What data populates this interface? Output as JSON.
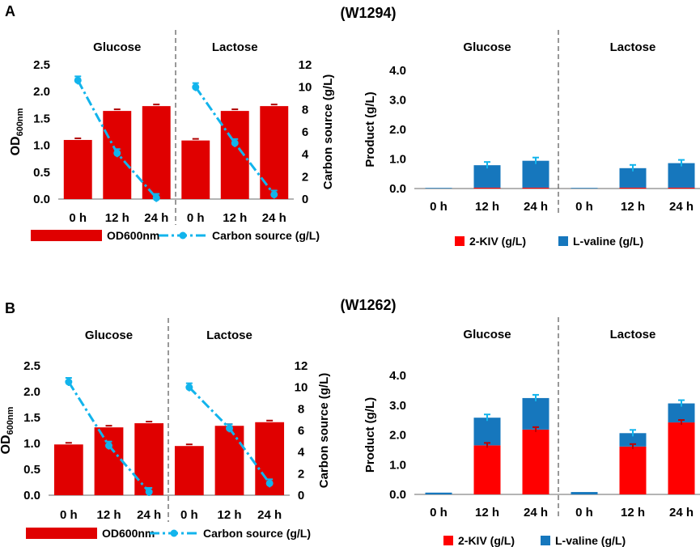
{
  "figure": {
    "panels": [
      {
        "label": "A",
        "title": "(W1294)"
      },
      {
        "label": "B",
        "title": "(W1262)"
      }
    ]
  },
  "colors": {
    "bar": "#e00000",
    "line": "#12b4ec",
    "valine": "#1677bd",
    "kiv": "#ff0000",
    "errbar": "#12b4ec",
    "axis": "#888888",
    "divider": "#333333"
  },
  "chart_data": [
    {
      "id": "A-left",
      "type": "bar+line",
      "groups": [
        "Glucose",
        "Lactose"
      ],
      "categories": [
        "0 h",
        "12 h",
        "24 h"
      ],
      "ylabel_left_main": "OD",
      "ylabel_left_sub": "600nm",
      "ylabel_right": "Carbon source (g/L)",
      "ylim_left": [
        0,
        2.5
      ],
      "yticks_left": [
        "0.0",
        "0.5",
        "1.0",
        "1.5",
        "2.0",
        "2.5"
      ],
      "ylim_right": [
        0,
        12
      ],
      "yticks_right": [
        "0",
        "2",
        "4",
        "6",
        "8",
        "10",
        "12"
      ],
      "series": [
        {
          "name": "OD600nm",
          "type": "bar",
          "axis": "left",
          "values": [
            [
              1.1,
              1.64,
              1.73
            ],
            [
              1.09,
              1.64,
              1.73
            ]
          ]
        },
        {
          "name": "Carbon source (g/L)",
          "type": "line",
          "axis": "right",
          "values": [
            [
              10.6,
              4.1,
              0.1
            ],
            [
              10.0,
              5.0,
              0.4
            ]
          ]
        }
      ],
      "legend": [
        "OD600nm",
        "Carbon source (g/L)"
      ]
    },
    {
      "id": "A-right",
      "type": "stacked-bar",
      "groups": [
        "Glucose",
        "Lactose"
      ],
      "categories": [
        "0 h",
        "12 h",
        "24 h"
      ],
      "ylabel": "Product (g/L)",
      "ylim": [
        0,
        4.0
      ],
      "yticks": [
        "0.0",
        "1.0",
        "2.0",
        "3.0",
        "4.0"
      ],
      "series": [
        {
          "name": "2-KIV (g/L)",
          "values": [
            [
              0.0,
              0.03,
              0.03
            ],
            [
              0.0,
              0.03,
              0.03
            ]
          ]
        },
        {
          "name": "L-valine (g/L)",
          "values": [
            [
              0.02,
              0.76,
              0.91
            ],
            [
              0.02,
              0.66,
              0.83
            ]
          ]
        }
      ],
      "legend": [
        "2-KIV (g/L)",
        "L-valine (g/L)"
      ]
    },
    {
      "id": "B-left",
      "type": "bar+line",
      "groups": [
        "Glucose",
        "Lactose"
      ],
      "categories": [
        "0 h",
        "12 h",
        "24 h"
      ],
      "ylabel_left_main": "OD",
      "ylabel_left_sub": "600nm",
      "ylabel_right": "Carbon source (g/L)",
      "ylim_left": [
        0,
        2.5
      ],
      "yticks_left": [
        "0.0",
        "0.5",
        "1.0",
        "1.5",
        "2.0",
        "2.5"
      ],
      "ylim_right": [
        0,
        12
      ],
      "yticks_right": [
        "0",
        "2",
        "4",
        "6",
        "8",
        "10",
        "12"
      ],
      "series": [
        {
          "name": "OD600nm",
          "type": "bar",
          "axis": "left",
          "values": [
            [
              0.98,
              1.31,
              1.39
            ],
            [
              0.95,
              1.34,
              1.41
            ]
          ]
        },
        {
          "name": "Carbon source (g/L)",
          "type": "line",
          "axis": "right",
          "values": [
            [
              10.5,
              4.6,
              0.3
            ],
            [
              10.0,
              6.2,
              1.1
            ]
          ]
        }
      ],
      "legend": [
        "OD600nm",
        "Carbon source (g/L)"
      ]
    },
    {
      "id": "B-right",
      "type": "stacked-bar",
      "groups": [
        "Glucose",
        "Lactose"
      ],
      "categories": [
        "0 h",
        "12 h",
        "24 h"
      ],
      "ylabel": "Product (g/L)",
      "ylim": [
        0,
        4.0
      ],
      "yticks": [
        "0.0",
        "1.0",
        "2.0",
        "3.0",
        "4.0"
      ],
      "series": [
        {
          "name": "2-KIV (g/L)",
          "values": [
            [
              0.0,
              1.65,
              2.18
            ],
            [
              0.0,
              1.61,
              2.42
            ]
          ]
        },
        {
          "name": "L-valine (g/L)",
          "values": [
            [
              0.06,
              0.93,
              1.06
            ],
            [
              0.08,
              0.45,
              0.64
            ]
          ]
        }
      ],
      "legend": [
        "2-KIV (g/L)",
        "L-valine (g/L)"
      ]
    }
  ]
}
